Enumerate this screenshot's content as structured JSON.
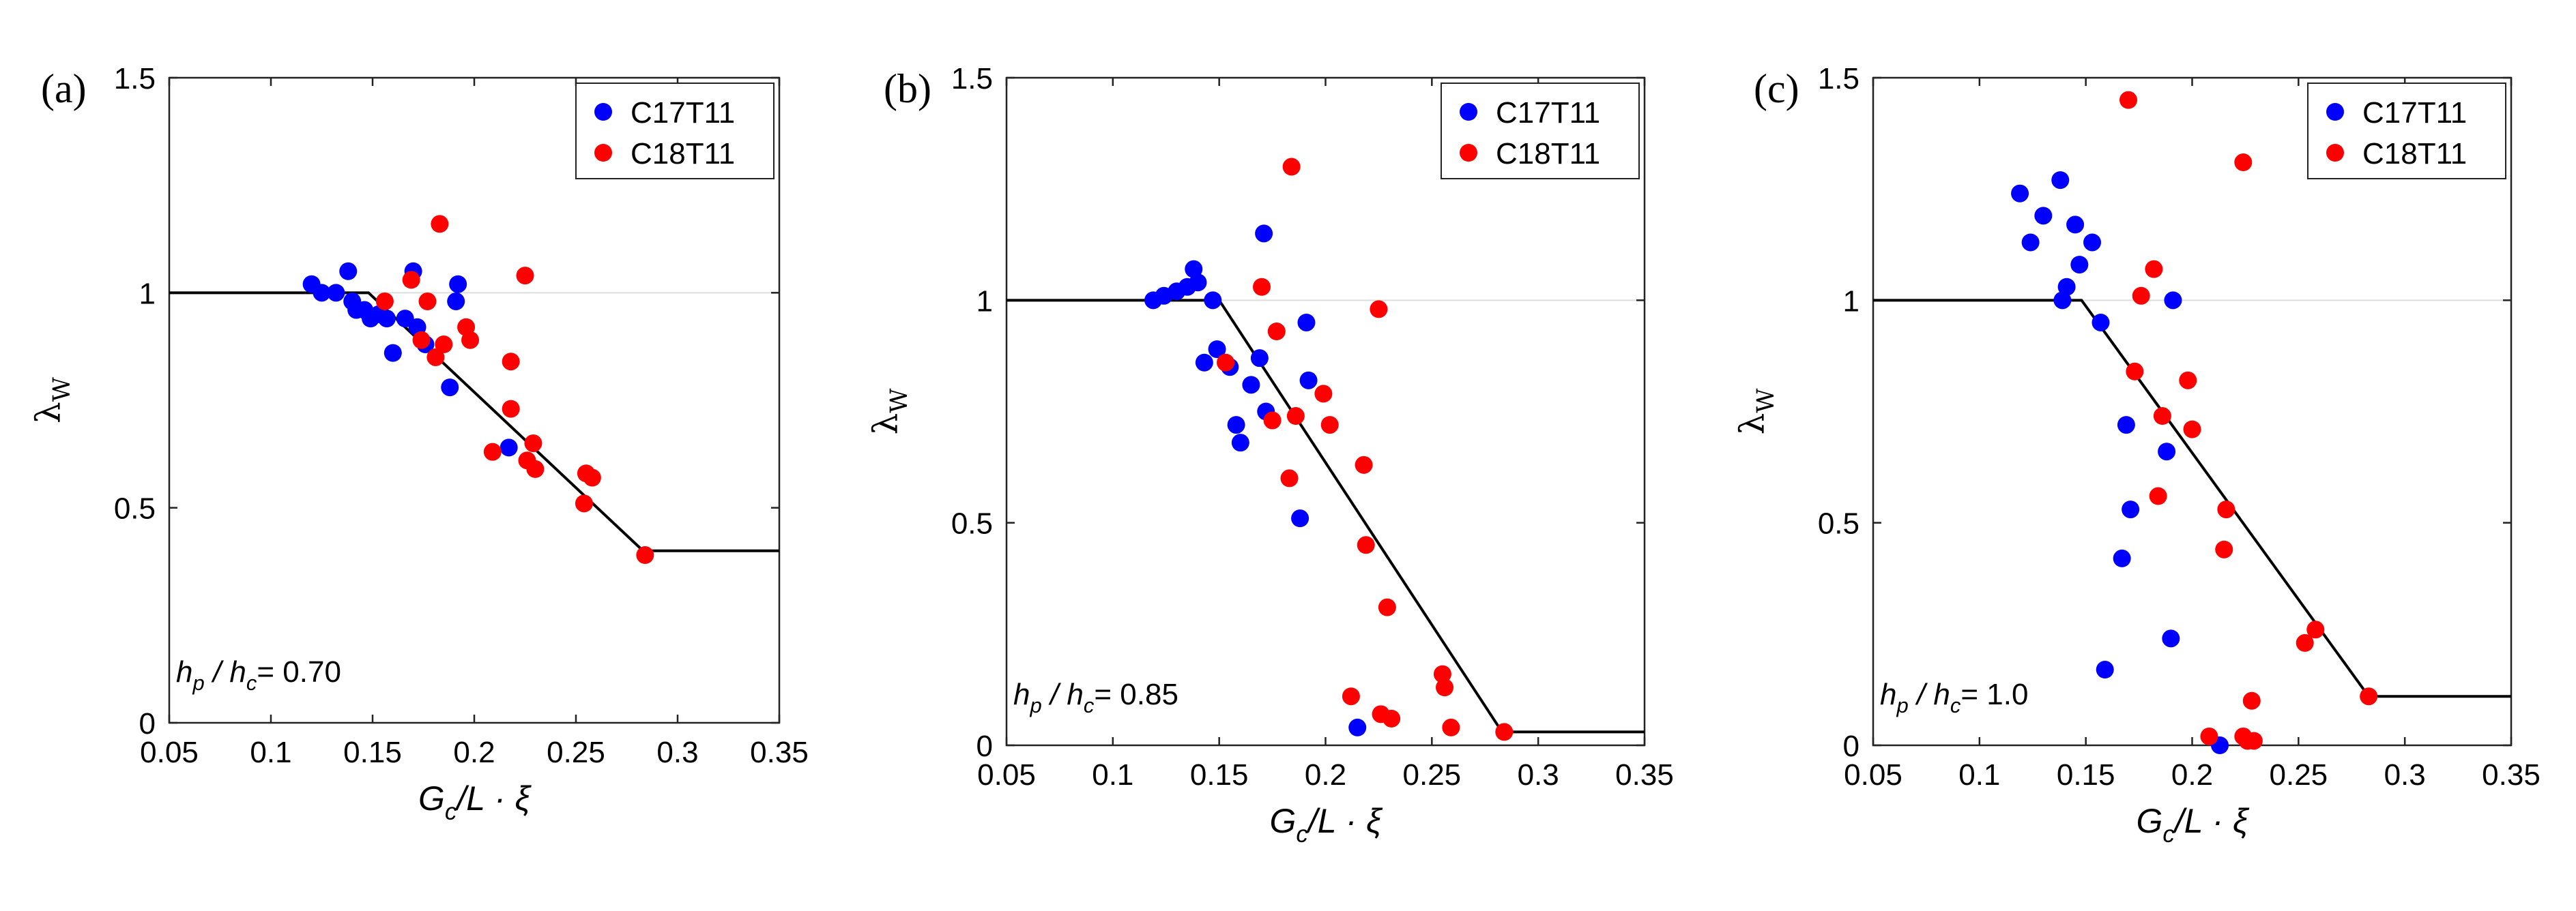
{
  "chart_data": [
    {
      "type": "scatter",
      "panel_label": "(a)",
      "xlabel": "G_c/L · ξ",
      "ylabel": "λ_W",
      "xlim": [
        0.05,
        0.35
      ],
      "ylim": [
        0,
        1.5
      ],
      "xticks": [
        "0.05",
        "0.1",
        "0.15",
        "0.2",
        "0.25",
        "0.3",
        "0.35"
      ],
      "yticks": [
        "0",
        "0.5",
        "1",
        "1.5"
      ],
      "legend_position": "top-right",
      "annotation": {
        "ratio_label": "h_p / h_c",
        "value": "= 0.70"
      },
      "reference_line": {
        "name": "model",
        "x": [
          0.05,
          0.148,
          0.283,
          0.35
        ],
        "y": [
          1.0,
          1.0,
          0.4,
          0.4
        ]
      },
      "series": [
        {
          "name": "C17T11",
          "color": "#0000ff",
          "x": [
            0.12,
            0.125,
            0.132,
            0.138,
            0.14,
            0.142,
            0.146,
            0.149,
            0.153,
            0.157,
            0.16,
            0.166,
            0.17,
            0.172,
            0.176,
            0.188,
            0.191,
            0.192,
            0.217
          ],
          "y": [
            1.02,
            1.0,
            1.0,
            1.05,
            0.98,
            0.96,
            0.96,
            0.94,
            0.95,
            0.94,
            0.86,
            0.94,
            1.05,
            0.92,
            0.88,
            0.78,
            0.98,
            1.02,
            0.64
          ]
        },
        {
          "name": "C18T11",
          "color": "#ff0000",
          "x": [
            0.156,
            0.169,
            0.174,
            0.177,
            0.181,
            0.183,
            0.185,
            0.196,
            0.198,
            0.209,
            0.218,
            0.218,
            0.225,
            0.226,
            0.229,
            0.23,
            0.255,
            0.258,
            0.254,
            0.284
          ],
          "y": [
            0.98,
            1.03,
            0.89,
            0.98,
            0.85,
            1.16,
            0.88,
            0.92,
            0.89,
            0.63,
            0.84,
            0.73,
            1.04,
            0.61,
            0.65,
            0.59,
            0.58,
            0.57,
            0.51,
            0.39
          ]
        }
      ]
    },
    {
      "type": "scatter",
      "panel_label": "(b)",
      "xlabel": "G_c/L · ξ",
      "ylabel": "λ_W",
      "xlim": [
        0.05,
        0.35
      ],
      "ylim": [
        0,
        1.5
      ],
      "xticks": [
        "0.05",
        "0.1",
        "0.15",
        "0.2",
        "0.25",
        "0.3",
        "0.35"
      ],
      "yticks": [
        "0",
        "0.5",
        "1",
        "1.5"
      ],
      "legend_position": "top-right",
      "annotation": {
        "ratio_label": "h_p / h_c",
        "value": "= 0.85"
      },
      "reference_line": {
        "name": "model",
        "x": [
          0.05,
          0.15,
          0.283,
          0.35
        ],
        "y": [
          1.0,
          1.0,
          0.03,
          0.03
        ]
      },
      "series": [
        {
          "name": "C17T11",
          "color": "#0000ff",
          "x": [
            0.119,
            0.124,
            0.13,
            0.135,
            0.138,
            0.14,
            0.143,
            0.147,
            0.149,
            0.155,
            0.158,
            0.16,
            0.165,
            0.169,
            0.171,
            0.172,
            0.188,
            0.191,
            0.192,
            0.215
          ],
          "y": [
            1.0,
            1.01,
            1.02,
            1.03,
            1.07,
            1.04,
            0.86,
            1.0,
            0.89,
            0.85,
            0.72,
            0.68,
            0.81,
            0.87,
            1.15,
            0.75,
            0.51,
            0.95,
            0.82,
            0.04
          ]
        },
        {
          "name": "C18T11",
          "color": "#ff0000",
          "x": [
            0.153,
            0.17,
            0.175,
            0.177,
            0.183,
            0.184,
            0.186,
            0.199,
            0.202,
            0.212,
            0.218,
            0.219,
            0.225,
            0.226,
            0.229,
            0.231,
            0.255,
            0.256,
            0.259,
            0.284
          ],
          "y": [
            0.86,
            1.03,
            0.73,
            0.93,
            0.6,
            1.3,
            0.74,
            0.79,
            0.72,
            0.11,
            0.63,
            0.45,
            0.98,
            0.07,
            0.31,
            0.06,
            0.16,
            0.13,
            0.04,
            0.03
          ]
        }
      ]
    },
    {
      "type": "scatter",
      "panel_label": "(c)",
      "xlabel": "G_c/L · ξ",
      "ylabel": "λ_W",
      "xlim": [
        0.05,
        0.35
      ],
      "ylim": [
        0,
        1.5
      ],
      "xticks": [
        "0.05",
        "0.1",
        "0.15",
        "0.2",
        "0.25",
        "0.3",
        "0.35"
      ],
      "yticks": [
        "0",
        "0.5",
        "1",
        "1.5"
      ],
      "legend_position": "top-right",
      "annotation": {
        "ratio_label": "h_p / h_c",
        "value": "= 1.0"
      },
      "reference_line": {
        "name": "model",
        "x": [
          0.05,
          0.148,
          0.283,
          0.35
        ],
        "y": [
          1.0,
          1.0,
          0.11,
          0.11
        ]
      },
      "series": [
        {
          "name": "C17T11",
          "color": "#0000ff",
          "x": [
            0.119,
            0.124,
            0.13,
            0.138,
            0.139,
            0.141,
            0.145,
            0.147,
            0.153,
            0.157,
            0.159,
            0.167,
            0.169,
            0.171,
            0.188,
            0.19,
            0.191,
            0.213
          ],
          "y": [
            1.24,
            1.13,
            1.19,
            1.27,
            1.0,
            1.03,
            1.17,
            1.08,
            1.13,
            0.95,
            0.17,
            0.42,
            0.72,
            0.53,
            0.66,
            0.24,
            1.0,
            0.0
          ]
        },
        {
          "name": "C18T11",
          "color": "#ff0000",
          "x": [
            0.17,
            0.173,
            0.176,
            0.182,
            0.184,
            0.186,
            0.198,
            0.2,
            0.208,
            0.215,
            0.216,
            0.224,
            0.224,
            0.226,
            0.228,
            0.229,
            0.253,
            0.258,
            0.283
          ],
          "y": [
            1.45,
            0.84,
            1.01,
            1.07,
            0.56,
            0.74,
            0.82,
            0.71,
            0.02,
            0.44,
            0.53,
            1.31,
            0.02,
            0.01,
            0.1,
            0.01,
            0.23,
            0.26,
            0.11
          ]
        }
      ]
    }
  ]
}
